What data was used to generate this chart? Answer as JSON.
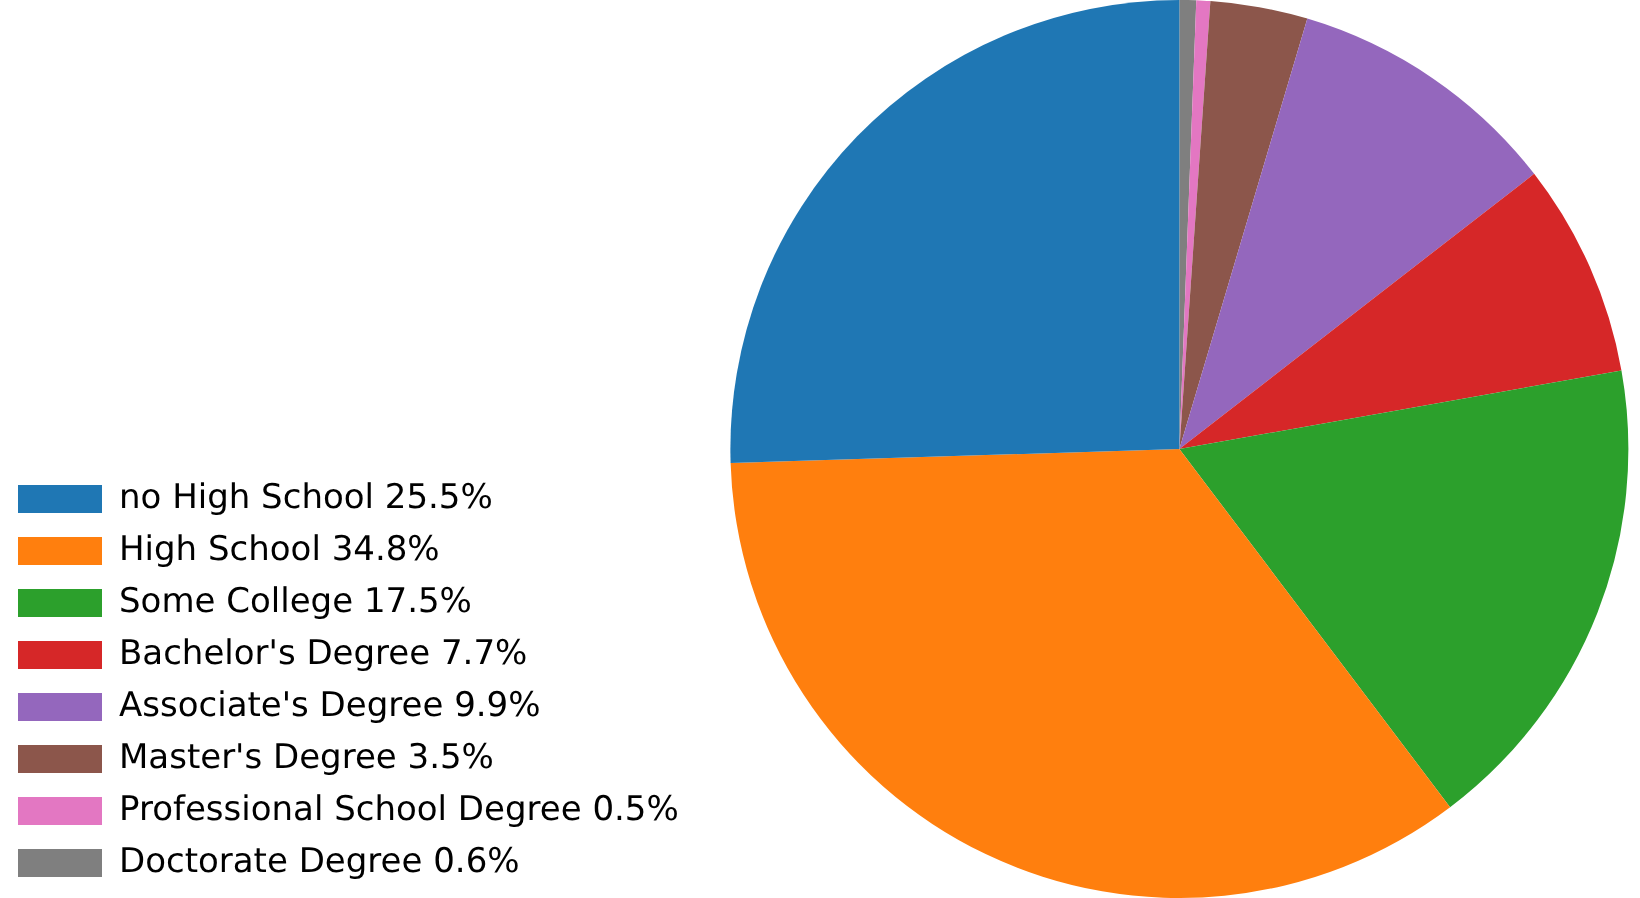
{
  "chart_data": {
    "type": "pie",
    "categories": [
      "no High School 25.5%",
      "High School 34.8%",
      "Some College 17.5%",
      "Bachelor's Degree 7.7%",
      "Associate's Degree 9.9%",
      "Master's Degree 3.5%",
      "Professional School Degree 0.5%",
      "Doctorate Degree 0.6%"
    ],
    "values": [
      25.5,
      34.8,
      17.5,
      7.7,
      9.9,
      3.5,
      0.5,
      0.6
    ],
    "colors": [
      "#1f77b4",
      "#ff7f0e",
      "#2ca02c",
      "#d62728",
      "#9467bd",
      "#8c564b",
      "#e377c2",
      "#7f7f7f"
    ],
    "legend": "left"
  }
}
